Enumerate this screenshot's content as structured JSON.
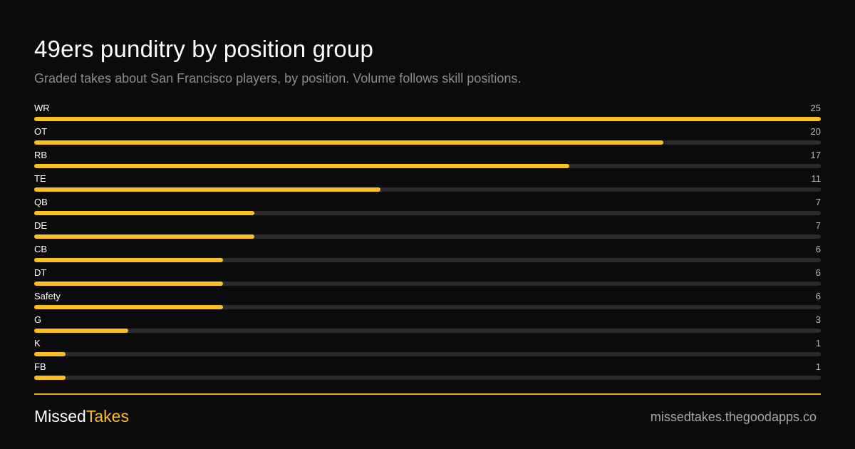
{
  "header": {
    "title": "49ers punditry by position group",
    "subtitle": "Graded takes about San Francisco players, by position. Volume follows skill positions."
  },
  "footer": {
    "brand_part1": "Missed",
    "brand_part2": "Takes",
    "site": "missedtakes.thegoodapps.co"
  },
  "colors": {
    "background": "#0b0b0b",
    "bar": "#fbbf24",
    "track": "#2a2a30"
  },
  "chart_data": {
    "type": "bar",
    "orientation": "horizontal",
    "categories": [
      "WR",
      "OT",
      "RB",
      "TE",
      "QB",
      "DE",
      "CB",
      "DT",
      "Safety",
      "G",
      "K",
      "FB"
    ],
    "values": [
      25,
      20,
      17,
      11,
      7,
      7,
      6,
      6,
      6,
      3,
      1,
      1
    ],
    "xlim": [
      0,
      25
    ],
    "grid": false,
    "legend": "none"
  }
}
